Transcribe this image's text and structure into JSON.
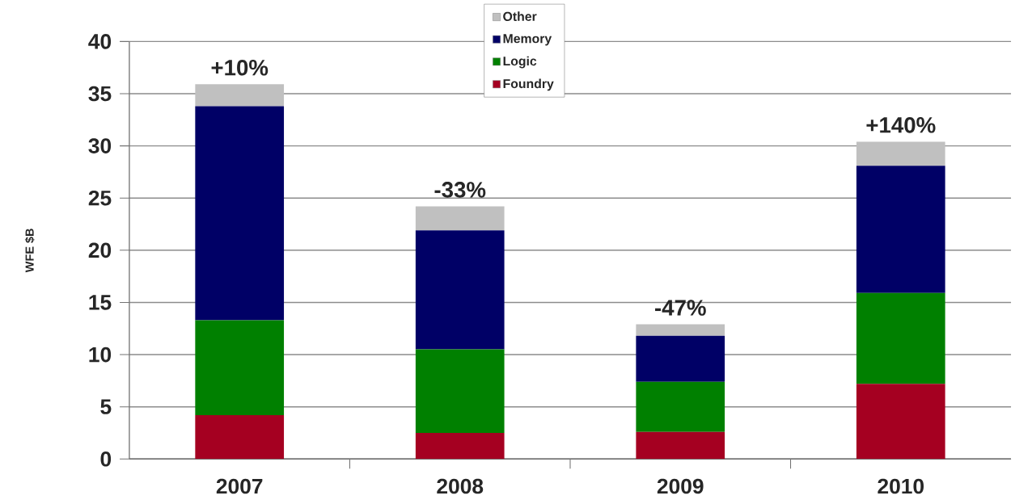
{
  "chart_data": {
    "type": "bar",
    "stacked": true,
    "ylabel": "WFE $B",
    "categories": [
      "2007",
      "2008",
      "2009",
      "2010"
    ],
    "series": [
      {
        "name": "Foundry",
        "color": "#a50021",
        "values": [
          4.2,
          2.5,
          2.6,
          7.2
        ]
      },
      {
        "name": "Logic",
        "color": "#008000",
        "values": [
          9.1,
          8.0,
          4.8,
          8.7
        ]
      },
      {
        "name": "Memory",
        "color": "#000066",
        "values": [
          20.5,
          11.4,
          4.4,
          12.2
        ]
      },
      {
        "name": "Other",
        "color": "#c0c0c0",
        "values": [
          2.1,
          2.3,
          1.1,
          2.3
        ]
      }
    ],
    "ylim": [
      0,
      40
    ],
    "yticks": [
      0,
      5,
      10,
      15,
      20,
      25,
      30,
      35,
      40
    ],
    "grid": "y",
    "legend": "top",
    "annotations": [
      {
        "text": "+10%",
        "x": "2007",
        "y": 35.9
      },
      {
        "text": "-33%",
        "x": "2008",
        "y": 24.2
      },
      {
        "text": "-47%",
        "x": "2009",
        "y": 12.9
      },
      {
        "text": "+140%",
        "x": "2010",
        "y": 30.4
      }
    ]
  }
}
